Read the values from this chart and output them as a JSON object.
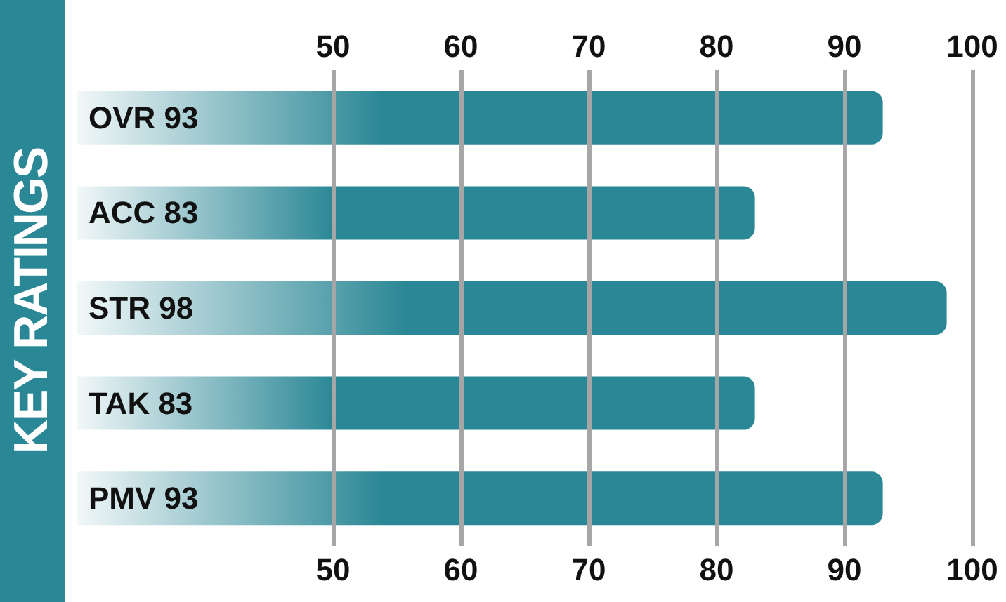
{
  "chart_data": {
    "type": "bar",
    "title": "KEY RATINGS",
    "orientation": "horizontal",
    "categories": [
      "OVR 93",
      "ACC 83",
      "STR 98",
      "TAK 83",
      "PMV 93"
    ],
    "values": [
      93,
      83,
      98,
      83,
      93
    ],
    "color": "#2a8795",
    "xlim": [
      30,
      100
    ],
    "xticks": [
      50,
      60,
      70,
      80,
      90,
      100
    ],
    "x2lim": [
      30,
      100
    ],
    "x2ticks": [
      50,
      60,
      70,
      80,
      90,
      100
    ],
    "grid": "x"
  }
}
